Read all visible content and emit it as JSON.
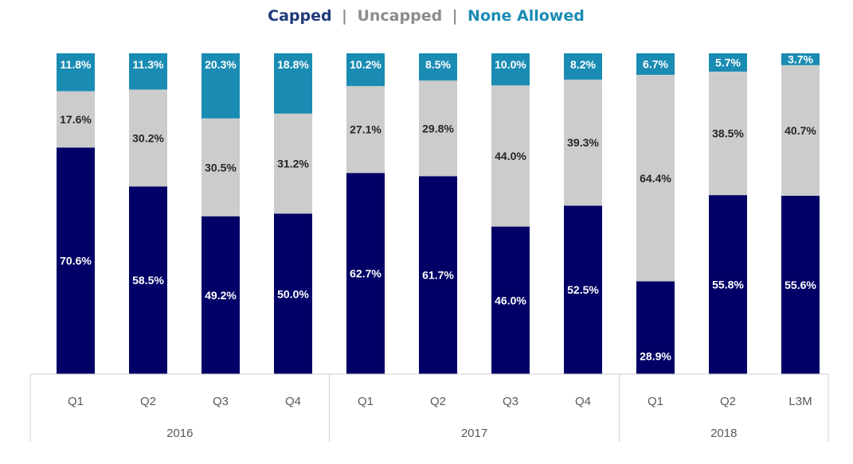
{
  "chart_data": {
    "type": "bar",
    "stacked": true,
    "title_parts": [
      "Capped",
      "Uncapped",
      "None Allowed"
    ],
    "title_separator": "|",
    "categories": [
      "Q1",
      "Q2",
      "Q3",
      "Q4",
      "Q1",
      "Q2",
      "Q3",
      "Q4",
      "Q1",
      "Q2",
      "L3M"
    ],
    "groups": [
      {
        "label": "2016",
        "count": 4
      },
      {
        "label": "2017",
        "count": 4
      },
      {
        "label": "2018",
        "count": 3
      }
    ],
    "series": [
      {
        "name": "Capped",
        "color": "#000066",
        "label_color": "#ffffff",
        "values": [
          70.6,
          58.5,
          49.2,
          50.0,
          62.7,
          61.7,
          46.0,
          52.5,
          28.9,
          55.8,
          55.6
        ]
      },
      {
        "name": "Uncapped",
        "color": "#cccccc",
        "label_color": "#262626",
        "values": [
          17.6,
          30.2,
          30.5,
          31.2,
          27.1,
          29.8,
          44.0,
          39.3,
          64.4,
          38.5,
          40.7
        ]
      },
      {
        "name": "None Allowed",
        "color": "#1a8cb3",
        "label_color": "#ffffff",
        "values": [
          11.8,
          11.3,
          20.3,
          18.8,
          10.2,
          8.5,
          10.0,
          8.2,
          6.7,
          5.7,
          3.7
        ]
      }
    ],
    "labels": [
      [
        "70.6%",
        "58.5%",
        "49.2%",
        "50.0%",
        "62.7%",
        "61.7%",
        "46.0%",
        "52.5%",
        "28.9%",
        "55.8%",
        "55.6%"
      ],
      [
        "17.6%",
        "30.2%",
        "30.5%",
        "31.2%",
        "27.1%",
        "29.8%",
        "44.0%",
        "39.3%",
        "64.4%",
        "38.5%",
        "40.7%"
      ],
      [
        "11.8%",
        "11.3%",
        "20.3%",
        "18.8%",
        "10.2%",
        "8.5%",
        "10.0%",
        "8.2%",
        "6.7%",
        "5.7%",
        "3.7%"
      ]
    ],
    "title_colors": [
      "#1f3a7a",
      "#8c8c8c",
      "#1a8cb3"
    ],
    "ylim": [
      0,
      100
    ],
    "legend": "title"
  }
}
